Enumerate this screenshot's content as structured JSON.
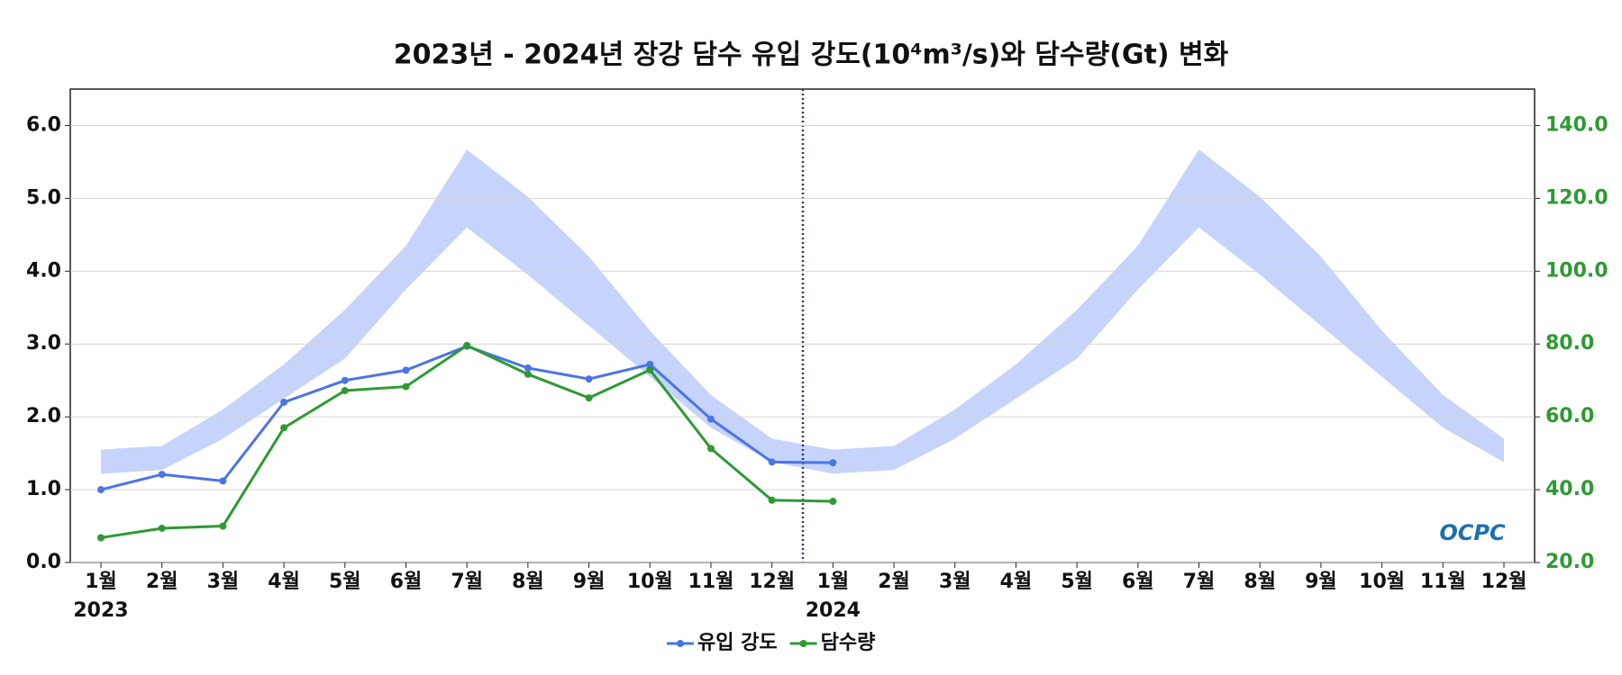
{
  "chart_data": {
    "type": "line",
    "title": "2023년 - 2024년 장강 담수 유입 강도(10⁴m³/s)와 담수량(Gt) 변화",
    "categories": [
      "1월",
      "2월",
      "3월",
      "4월",
      "5월",
      "6월",
      "7월",
      "8월",
      "9월",
      "10월",
      "11월",
      "12월",
      "1월",
      "2월",
      "3월",
      "4월",
      "5월",
      "6월",
      "7월",
      "8월",
      "9월",
      "10월",
      "11월",
      "12월"
    ],
    "years": [
      "2023",
      "2024"
    ],
    "range": {
      "color": "#c6d3fb",
      "upper": [
        1.55,
        1.6,
        2.1,
        2.72,
        3.47,
        4.35,
        5.67,
        5.02,
        4.2,
        3.18,
        2.3,
        1.7,
        1.55,
        1.6,
        2.1,
        2.72,
        3.47,
        4.35,
        5.67,
        5.02,
        4.2,
        3.18,
        2.3,
        1.7
      ],
      "lower": [
        1.22,
        1.27,
        1.7,
        2.25,
        2.8,
        3.75,
        4.6,
        3.95,
        3.25,
        2.55,
        1.85,
        1.38,
        1.22,
        1.27,
        1.7,
        2.25,
        2.8,
        3.75,
        4.6,
        3.95,
        3.25,
        2.55,
        1.85,
        1.38
      ]
    },
    "series": [
      {
        "name": "유입 강도",
        "color": "#4b74e6",
        "values": [
          1.0,
          1.21,
          1.12,
          2.2,
          2.5,
          2.64,
          2.97,
          2.67,
          2.52,
          2.72,
          1.97,
          1.38,
          1.37,
          null,
          null,
          null,
          null,
          null,
          null,
          null,
          null,
          null,
          null,
          null
        ]
      },
      {
        "name": "담수량",
        "color": "#2e9a33",
        "axis": "y2",
        "values": [
          26.8,
          29.4,
          30.0,
          57.0,
          67.2,
          68.3,
          79.6,
          71.7,
          65.2,
          72.9,
          51.3,
          37.1,
          36.8,
          null,
          null,
          null,
          null,
          null,
          null,
          null,
          null,
          null,
          null,
          null
        ]
      }
    ],
    "ylim": [
      0,
      6.5
    ],
    "yticks": [
      {
        "value": 0,
        "label": "0.0"
      },
      {
        "value": 1,
        "label": "1.0"
      },
      {
        "value": 2,
        "label": "2.0"
      },
      {
        "value": 3,
        "label": "3.0"
      },
      {
        "value": 4,
        "label": "4.0"
      },
      {
        "value": 5,
        "label": "5.0"
      },
      {
        "value": 6,
        "label": "6.0"
      }
    ],
    "y2lim": [
      20,
      150
    ],
    "y2ticks": [
      {
        "value": 20,
        "label": "20.0"
      },
      {
        "value": 40,
        "label": "40.0"
      },
      {
        "value": 60,
        "label": "60.0"
      },
      {
        "value": 80,
        "label": "80.0"
      },
      {
        "value": 100,
        "label": "100.0"
      },
      {
        "value": 120,
        "label": "120.0"
      },
      {
        "value": 140,
        "label": "140.0"
      }
    ],
    "y2color": "#2e9a33",
    "grid": true,
    "legend": "bottom",
    "logo": "OCPC"
  }
}
